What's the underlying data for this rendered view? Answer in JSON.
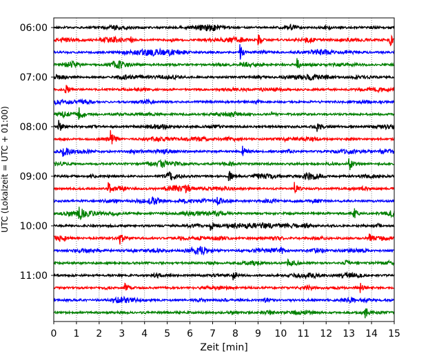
{
  "chart_data": {
    "type": "line",
    "subtype": "helicorder",
    "xlabel": "Zeit  [min]",
    "ylabel": "UTC (Lokalzeit = UTC + 01:00)",
    "xlim": [
      0,
      15
    ],
    "x_ticks": [
      "0",
      "1",
      "2",
      "3",
      "4",
      "5",
      "6",
      "7",
      "8",
      "9",
      "10",
      "11",
      "12",
      "13",
      "14",
      "15"
    ],
    "y_tick_labels": [
      "06:00",
      "07:00",
      "08:00",
      "09:00",
      "10:00",
      "11:00"
    ],
    "grid": "vertical dotted",
    "colors": [
      "#000000",
      "#ff0000",
      "#0000ff",
      "#008000"
    ],
    "traces": [
      {
        "start": "06:00",
        "events": []
      },
      {
        "start": "06:15",
        "events": [
          {
            "t": 3.4,
            "a": 0.3
          },
          {
            "t": 9.0,
            "a": 0.9
          },
          {
            "t": 14.8,
            "a": 0.9
          }
        ]
      },
      {
        "start": "06:30",
        "events": [
          {
            "t": 8.2,
            "a": 0.9
          }
        ]
      },
      {
        "start": "06:45",
        "events": [
          {
            "t": 5.1,
            "a": 0.3
          },
          {
            "t": 10.7,
            "a": 0.8
          }
        ]
      },
      {
        "start": "07:00",
        "events": []
      },
      {
        "start": "07:15",
        "events": [
          {
            "t": 0.5,
            "a": 0.9
          }
        ]
      },
      {
        "start": "07:30",
        "events": [
          {
            "t": 8.9,
            "a": 0.3
          }
        ]
      },
      {
        "start": "07:45",
        "events": [
          {
            "t": 1.1,
            "a": 0.7
          },
          {
            "t": 9.6,
            "a": 0.3
          }
        ]
      },
      {
        "start": "08:00",
        "events": [
          {
            "t": 0.2,
            "a": 0.9
          },
          {
            "t": 11.6,
            "a": 0.5
          }
        ]
      },
      {
        "start": "08:15",
        "events": [
          {
            "t": 2.5,
            "a": 0.8
          }
        ]
      },
      {
        "start": "08:30",
        "events": [
          {
            "t": 0.4,
            "a": 0.8
          },
          {
            "t": 8.3,
            "a": 0.8
          },
          {
            "t": 10.3,
            "a": 0.3
          }
        ]
      },
      {
        "start": "08:45",
        "events": [
          {
            "t": 13.0,
            "a": 1.1
          }
        ]
      },
      {
        "start": "09:00",
        "events": [
          {
            "t": 1.6,
            "a": 0.3
          },
          {
            "t": 7.7,
            "a": 0.9
          }
        ]
      },
      {
        "start": "09:15",
        "events": [
          {
            "t": 2.4,
            "a": 0.8
          },
          {
            "t": 10.6,
            "a": 0.8
          }
        ]
      },
      {
        "start": "09:30",
        "events": [
          {
            "t": 7.2,
            "a": 0.6
          }
        ]
      },
      {
        "start": "09:45",
        "events": [
          {
            "t": 1.1,
            "a": 0.7
          },
          {
            "t": 13.2,
            "a": 0.8
          }
        ]
      },
      {
        "start": "10:00",
        "events": [
          {
            "t": 6.9,
            "a": 0.6
          }
        ]
      },
      {
        "start": "10:15",
        "events": [
          {
            "t": 2.9,
            "a": 0.7
          },
          {
            "t": 13.9,
            "a": 0.6
          }
        ]
      },
      {
        "start": "10:30",
        "events": [
          {
            "t": 10.0,
            "a": 0.3
          }
        ]
      },
      {
        "start": "10:45",
        "events": [
          {
            "t": 10.3,
            "a": 0.3
          }
        ]
      },
      {
        "start": "11:00",
        "events": [
          {
            "t": 7.9,
            "a": 0.7
          }
        ]
      },
      {
        "start": "11:15",
        "events": [
          {
            "t": 3.1,
            "a": 0.6
          },
          {
            "t": 13.5,
            "a": 0.6
          }
        ]
      },
      {
        "start": "11:30",
        "events": [
          {
            "t": 9.3,
            "a": 0.3
          }
        ]
      },
      {
        "start": "11:45",
        "events": [
          {
            "t": 13.7,
            "a": 0.5
          }
        ]
      }
    ]
  }
}
